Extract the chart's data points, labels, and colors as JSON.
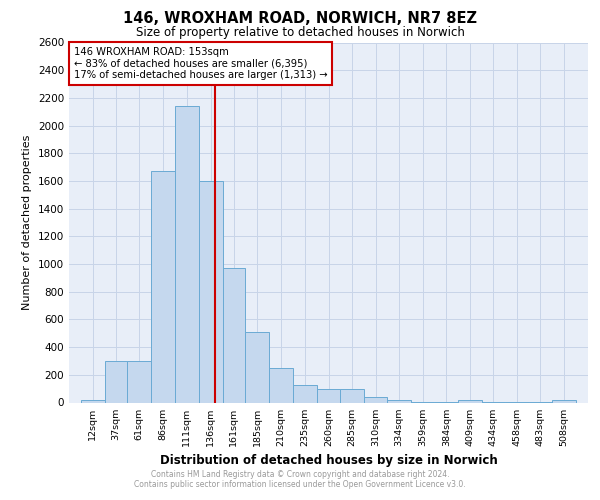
{
  "title": "146, WROXHAM ROAD, NORWICH, NR7 8EZ",
  "subtitle": "Size of property relative to detached houses in Norwich",
  "xlabel": "Distribution of detached houses by size in Norwich",
  "ylabel": "Number of detached properties",
  "bin_labels": [
    "12sqm",
    "37sqm",
    "61sqm",
    "86sqm",
    "111sqm",
    "136sqm",
    "161sqm",
    "185sqm",
    "210sqm",
    "235sqm",
    "260sqm",
    "285sqm",
    "310sqm",
    "334sqm",
    "359sqm",
    "384sqm",
    "409sqm",
    "434sqm",
    "458sqm",
    "483sqm",
    "508sqm"
  ],
  "bin_edges": [
    12,
    37,
    61,
    86,
    111,
    136,
    161,
    185,
    210,
    235,
    260,
    285,
    310,
    334,
    359,
    384,
    409,
    434,
    458,
    483,
    508
  ],
  "values": [
    20,
    300,
    300,
    1670,
    2140,
    1600,
    970,
    510,
    250,
    125,
    100,
    100,
    40,
    15,
    5,
    5,
    20,
    5,
    5,
    5,
    20
  ],
  "bar_color": "#c5d8ee",
  "bar_edge_color": "#6aaad4",
  "vline_x": 153,
  "vline_color": "#cc0000",
  "annotation_line1": "146 WROXHAM ROAD: 153sqm",
  "annotation_line2": "← 83% of detached houses are smaller (6,395)",
  "annotation_line3": "17% of semi-detached houses are larger (1,313) →",
  "ylim": [
    0,
    2600
  ],
  "yticks": [
    0,
    200,
    400,
    600,
    800,
    1000,
    1200,
    1400,
    1600,
    1800,
    2000,
    2200,
    2400,
    2600
  ],
  "grid_color": "#c8d4e8",
  "bg_color": "#e8eef8",
  "footer_line1": "Contains HM Land Registry data © Crown copyright and database right 2024.",
  "footer_line2": "Contains public sector information licensed under the Open Government Licence v3.0.",
  "footer_color": "#999999"
}
